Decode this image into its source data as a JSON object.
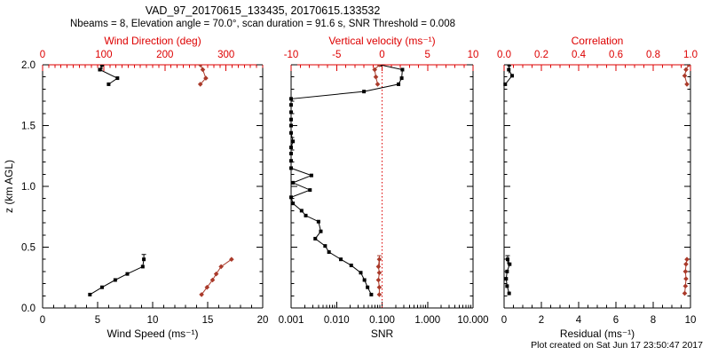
{
  "page": {
    "title": "VAD_97_20170615_133435, 20170615.133532",
    "subtitle": "Nbeams = 8, Elevation angle = 70.0°, scan duration = 91.6 s, SNR Threshold = 0.008",
    "footer": "Plot created on Sat Jun 17 23:50:47 2017"
  },
  "colors": {
    "background": "#ffffff",
    "axis_black": "#000000",
    "axis_red": "#dd0000",
    "marker_red": "#aa3a2a"
  },
  "chart_data": [
    {
      "name": "wind",
      "type": "line",
      "xlabel": "Wind Speed (ms⁻¹)",
      "xrange": [
        0,
        20
      ],
      "xticks": [
        0,
        5,
        10,
        15,
        20
      ],
      "xtick_labels": [
        "0",
        "5",
        "10",
        "15",
        "20"
      ],
      "xminor": 1,
      "x2label": "Wind Direction (deg)",
      "x2range": [
        0,
        360
      ],
      "x2ticks": [
        0,
        100,
        200,
        300
      ],
      "x2tick_labels": [
        "0",
        "100",
        "200",
        "300"
      ],
      "x2minor": 10,
      "ylabel": "z (km AGL)",
      "yrange": [
        0,
        2
      ],
      "yticks": [
        0.0,
        0.5,
        1.0,
        1.5,
        2.0
      ],
      "ytick_labels": [
        "0.0",
        "0.5",
        "1.0",
        "1.5",
        "2.0"
      ],
      "yminor": 0.1,
      "grid": false,
      "series": [
        {
          "name": "wind-speed",
          "axis": "bottom",
          "color": "black",
          "marker": "square",
          "segments": [
            [
              [
                4.3,
                0.11
              ],
              [
                5.4,
                0.17
              ],
              [
                6.6,
                0.23
              ],
              [
                7.7,
                0.28
              ],
              [
                9.1,
                0.34
              ],
              [
                9.2,
                0.4
              ]
            ],
            [
              [
                6.0,
                1.84
              ],
              [
                6.8,
                1.89
              ],
              [
                5.2,
                1.96
              ],
              [
                5.4,
                2.0
              ]
            ]
          ],
          "whiskers": [
            {
              "x": 9.2,
              "y1": 0.4,
              "y2": 0.44
            },
            {
              "x": 5.4,
              "y1": 1.96,
              "y2": 2.0
            }
          ]
        },
        {
          "name": "wind-direction",
          "axis": "top",
          "color": "red",
          "marker": "diamond",
          "segments": [
            [
              [
                260,
                0.11
              ],
              [
                269,
                0.17
              ],
              [
                278,
                0.23
              ],
              [
                284,
                0.28
              ],
              [
                292,
                0.34
              ],
              [
                309,
                0.4
              ]
            ],
            [
              [
                258,
                1.84
              ],
              [
                267,
                1.89
              ],
              [
                262,
                1.96
              ],
              [
                258,
                2.0
              ]
            ]
          ],
          "whiskers": []
        }
      ]
    },
    {
      "name": "snr",
      "type": "line",
      "xlabel": "SNR",
      "xscale": "log",
      "xrange": [
        0.001,
        10.0
      ],
      "xticks": [
        0.001,
        0.01,
        0.1,
        1.0,
        10.0
      ],
      "xtick_labels": [
        "0.001",
        "0.010",
        "0.100",
        "1.000",
        "10.000"
      ],
      "x2label": "Vertical velocity (ms⁻¹)",
      "x2range": [
        -10,
        10
      ],
      "x2ticks": [
        -10,
        -5,
        0,
        5,
        10
      ],
      "x2tick_labels": [
        "-10",
        "-5",
        "0",
        "5",
        "10"
      ],
      "x2minor": 1,
      "yrange": [
        0,
        2
      ],
      "yticks": [
        0.0,
        0.5,
        1.0,
        1.5,
        2.0
      ],
      "yminor": 0.1,
      "grid": false,
      "zero_line": {
        "axis": "top",
        "value": 0,
        "style": "dotted",
        "color": "red"
      },
      "series": [
        {
          "name": "snr",
          "axis": "bottom",
          "color": "black",
          "marker": "square",
          "segments": [
            [
              [
                0.09,
                2.0
              ],
              [
                0.28,
                1.96
              ],
              [
                0.27,
                1.89
              ],
              [
                0.23,
                1.84
              ],
              [
                0.04,
                1.78
              ],
              [
                0.001,
                1.72
              ],
              [
                0.001,
                1.67
              ],
              [
                0.001,
                1.61
              ],
              [
                0.001,
                1.55
              ],
              [
                0.001,
                1.5
              ],
              [
                0.001,
                1.44
              ],
              [
                0.0011,
                1.37
              ],
              [
                0.001,
                1.32
              ],
              [
                0.001,
                1.27
              ],
              [
                0.001,
                1.21
              ],
              [
                0.001,
                1.15
              ],
              [
                0.0028,
                1.09
              ],
              [
                0.0011,
                1.03
              ],
              [
                0.0026,
                0.97
              ],
              [
                0.001,
                0.91
              ],
              [
                0.0011,
                0.86
              ],
              [
                0.0017,
                0.8
              ],
              [
                0.0021,
                0.76
              ],
              [
                0.004,
                0.71
              ],
              [
                0.0045,
                0.63
              ],
              [
                0.0034,
                0.57
              ],
              [
                0.0056,
                0.51
              ],
              [
                0.0068,
                0.46
              ],
              [
                0.0124,
                0.4
              ],
              [
                0.021,
                0.35
              ],
              [
                0.034,
                0.29
              ],
              [
                0.041,
                0.23
              ],
              [
                0.048,
                0.17
              ],
              [
                0.058,
                0.11
              ]
            ]
          ],
          "whiskers": []
        },
        {
          "name": "vertical-velocity",
          "axis": "top",
          "color": "red",
          "marker": "diamond",
          "segments": [
            [
              [
                -0.3,
                0.11
              ],
              [
                -0.3,
                0.17
              ],
              [
                -0.4,
                0.23
              ],
              [
                -0.3,
                0.29
              ],
              [
                -0.4,
                0.34
              ],
              [
                -0.3,
                0.4
              ]
            ],
            [
              [
                -0.49,
                1.84
              ],
              [
                -0.68,
                1.9
              ],
              [
                -0.81,
                1.96
              ],
              [
                -0.32,
                2.0
              ]
            ]
          ],
          "whiskers": [
            {
              "x": -0.3,
              "y1": 0.33,
              "y2": 0.43
            }
          ]
        }
      ]
    },
    {
      "name": "residual",
      "type": "line",
      "xlabel": "Residual (ms⁻¹)",
      "xrange": [
        0,
        10
      ],
      "xticks": [
        0,
        2,
        4,
        6,
        8,
        10
      ],
      "xtick_labels": [
        "0",
        "2",
        "4",
        "6",
        "8",
        "10"
      ],
      "xminor": 0.5,
      "x2label": "Correlation",
      "x2range": [
        0,
        1
      ],
      "x2ticks": [
        0.0,
        0.2,
        0.4,
        0.6,
        0.8,
        1.0
      ],
      "x2tick_labels": [
        "0.0",
        "0.2",
        "0.4",
        "0.6",
        "0.8",
        "1.0"
      ],
      "x2minor": 0.05,
      "yrange": [
        0,
        2
      ],
      "yticks": [
        0.0,
        0.5,
        1.0,
        1.5,
        2.0
      ],
      "yminor": 0.1,
      "grid": false,
      "series": [
        {
          "name": "residual",
          "axis": "bottom",
          "color": "black",
          "marker": "square",
          "segments": [
            [
              [
                0.27,
                0.12
              ],
              [
                0.16,
                0.18
              ],
              [
                0.11,
                0.24
              ],
              [
                0.16,
                0.3
              ],
              [
                0.3,
                0.36
              ],
              [
                0.19,
                0.4
              ]
            ],
            [
              [
                0.06,
                1.84
              ],
              [
                0.43,
                1.91
              ],
              [
                0.25,
                1.96
              ],
              [
                0.27,
                2.0
              ]
            ]
          ],
          "whiskers": [
            {
              "x": 0.19,
              "y1": 0.36,
              "y2": 0.43
            },
            {
              "x": 0.27,
              "y1": 1.93,
              "y2": 2.0
            }
          ]
        },
        {
          "name": "correlation",
          "axis": "top",
          "color": "red",
          "marker": "diamond",
          "segments": [
            [
              [
                0.969,
                0.12
              ],
              [
                0.973,
                0.18
              ],
              [
                0.976,
                0.24
              ],
              [
                0.973,
                0.3
              ],
              [
                0.976,
                0.36
              ],
              [
                0.981,
                0.4
              ]
            ],
            [
              [
                0.981,
                1.84
              ],
              [
                0.969,
                1.91
              ],
              [
                0.976,
                1.96
              ],
              [
                0.99,
                2.0
              ]
            ]
          ],
          "whiskers": []
        }
      ]
    }
  ]
}
